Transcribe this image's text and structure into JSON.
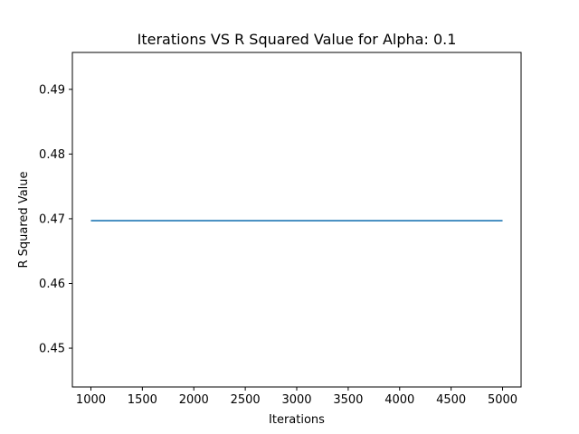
{
  "chart_data": {
    "type": "line",
    "title": "Iterations VS R Squared Value for Alpha: 0.1",
    "xlabel": "Iterations",
    "ylabel": "R Squared Value",
    "xlim": [
      820,
      5180
    ],
    "ylim": [
      0.444,
      0.4957
    ],
    "xticks": [
      1000,
      1500,
      2000,
      2500,
      3000,
      3500,
      4000,
      4500,
      5000
    ],
    "yticks": [
      0.45,
      0.46,
      0.47,
      0.48,
      0.49
    ],
    "grid": false,
    "series": [
      {
        "color": "#1f77b4",
        "x": [
          1000,
          2000,
          3000,
          4000,
          5000
        ],
        "y": [
          0.4697,
          0.4697,
          0.4697,
          0.4697,
          0.4697
        ]
      }
    ]
  }
}
